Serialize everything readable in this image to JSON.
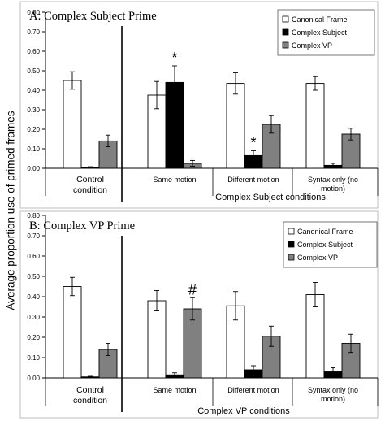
{
  "figure": {
    "ylabel": "Average proportion use of primed frames"
  },
  "chart_data": [
    {
      "type": "bar",
      "title": "A: Complex Subject Prime",
      "xlabel": "Complex Subject conditions",
      "ylabel": "Average proportion use of primed frames",
      "ylim": [
        0,
        0.8
      ],
      "yticks": [
        "0.00",
        "0.10",
        "0.20",
        "0.30",
        "0.40",
        "0.50",
        "0.60",
        "0.70",
        "0.80"
      ],
      "grid": false,
      "legend": "top-right",
      "categories": [
        "Control condition",
        "Same motion",
        "Different motion",
        "Syntax only (no motion)"
      ],
      "series": [
        {
          "name": "Canonical Frame",
          "color": "#ffffff",
          "values": [
            0.45,
            0.375,
            0.435,
            0.435
          ],
          "errors": [
            0.045,
            0.07,
            0.055,
            0.035
          ]
        },
        {
          "name": "Complex Subject",
          "color": "#000000",
          "values": [
            0.005,
            0.44,
            0.065,
            0.015
          ],
          "errors": [
            0.003,
            0.085,
            0.025,
            0.01
          ]
        },
        {
          "name": "Complex VP",
          "color": "#808080",
          "values": [
            0.14,
            0.025,
            0.225,
            0.175
          ],
          "errors": [
            0.03,
            0.015,
            0.045,
            0.03
          ]
        }
      ],
      "annotations": [
        {
          "text": "*",
          "category": "Same motion",
          "series": "Complex Subject"
        },
        {
          "text": "*",
          "category": "Different motion",
          "series": "Complex Subject"
        }
      ]
    },
    {
      "type": "bar",
      "title": "B: Complex VP Prime",
      "xlabel": "Complex VP conditions",
      "ylabel": "Average proportion use of primed frames",
      "ylim": [
        0,
        0.8
      ],
      "yticks": [
        "0.00",
        "0.10",
        "0.20",
        "0.30",
        "0.40",
        "0.50",
        "0.60",
        "0.70",
        "0.80"
      ],
      "grid": false,
      "legend": "top-right",
      "categories": [
        "Control condition",
        "Same motion",
        "Different motion",
        "Syntax only (no motion)"
      ],
      "series": [
        {
          "name": "Canonical Frame",
          "color": "#ffffff",
          "values": [
            0.45,
            0.38,
            0.355,
            0.41
          ],
          "errors": [
            0.045,
            0.05,
            0.07,
            0.06
          ]
        },
        {
          "name": "Complex Subject",
          "color": "#000000",
          "values": [
            0.005,
            0.015,
            0.04,
            0.03
          ],
          "errors": [
            0.003,
            0.01,
            0.02,
            0.02
          ]
        },
        {
          "name": "Complex VP",
          "color": "#808080",
          "values": [
            0.14,
            0.34,
            0.205,
            0.17
          ],
          "errors": [
            0.03,
            0.055,
            0.05,
            0.045
          ]
        }
      ],
      "annotations": [
        {
          "text": "#",
          "category": "Same motion",
          "series": "Complex VP"
        }
      ]
    }
  ]
}
